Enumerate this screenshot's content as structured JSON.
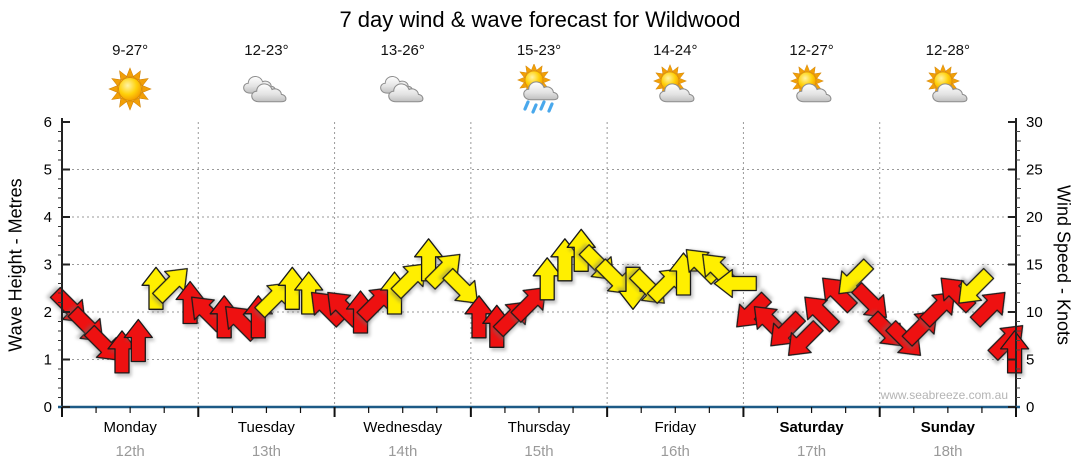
{
  "title": "7 day wind & wave forecast for Wildwood",
  "watermark": "www.seabreeze.com.au",
  "days": [
    {
      "name": "Monday",
      "date": "12th",
      "temp": "9-27°",
      "icon": "sunny",
      "bold": false
    },
    {
      "name": "Tuesday",
      "date": "13th",
      "temp": "12-23°",
      "icon": "cloudy",
      "bold": false
    },
    {
      "name": "Wednesday",
      "date": "14th",
      "temp": "13-26°",
      "icon": "cloudy",
      "bold": false
    },
    {
      "name": "Thursday",
      "date": "15th",
      "temp": "15-23°",
      "icon": "sun-showers",
      "bold": false
    },
    {
      "name": "Friday",
      "date": "16th",
      "temp": "14-24°",
      "icon": "partly-cloudy",
      "bold": false
    },
    {
      "name": "Saturday",
      "date": "17th",
      "temp": "12-27°",
      "icon": "partly-cloudy",
      "bold": true
    },
    {
      "name": "Sunday",
      "date": "18th",
      "temp": "12-28°",
      "icon": "partly-cloudy",
      "bold": true
    }
  ],
  "chart_data": {
    "type": "scatter",
    "subtype": "wind-direction-arrows-timeseries",
    "title": "7 day wind & wave forecast for Wildwood",
    "left_axis": {
      "label": "Wave Height - Metres",
      "min": 0,
      "max": 6,
      "tick_step": 1,
      "tick_labels": [
        "0",
        "1",
        "2",
        "3",
        "4",
        "5",
        "6"
      ]
    },
    "right_axis": {
      "label": "Wind Speed - Knots",
      "min": 0,
      "max": 30,
      "tick_step": 5,
      "tick_labels": [
        "0",
        "5",
        "10",
        "15",
        "20",
        "25",
        "30"
      ]
    },
    "x_categories": [
      "Monday",
      "Tuesday",
      "Wednesday",
      "Thursday",
      "Friday",
      "Saturday",
      "Sunday"
    ],
    "grid": true,
    "colors": {
      "red_arrow": "#ee1111",
      "yellow_arrow": "#ffef00",
      "outline": "#1a1a1a",
      "gridline": "#9a9a9a",
      "bottom_axis": "#1d5a86",
      "date_text": "#9a9a9a"
    },
    "units_note": "arrow height = wind speed in knots (right axis); axes aligned 1 m = 5 kn",
    "points": [
      {
        "t": 0.06,
        "knots": 10.5,
        "dir": 135,
        "color": "red"
      },
      {
        "t": 0.19,
        "knots": 8.5,
        "dir": 135,
        "color": "red"
      },
      {
        "t": 0.31,
        "knots": 6.5,
        "dir": 135,
        "color": "red"
      },
      {
        "t": 0.44,
        "knots": 5.8,
        "dir": 0,
        "color": "red"
      },
      {
        "t": 0.56,
        "knots": 7.0,
        "dir": 0,
        "color": "red"
      },
      {
        "t": 0.69,
        "knots": 12.5,
        "dir": 0,
        "color": "yellow"
      },
      {
        "t": 0.81,
        "knots": 13.0,
        "dir": 45,
        "color": "yellow"
      },
      {
        "t": 0.94,
        "knots": 11.0,
        "dir": 0,
        "color": "red"
      },
      {
        "t": 1.06,
        "knots": 10.0,
        "dir": 315,
        "color": "red"
      },
      {
        "t": 1.19,
        "knots": 9.5,
        "dir": 0,
        "color": "red"
      },
      {
        "t": 1.31,
        "knots": 9.0,
        "dir": 315,
        "color": "red"
      },
      {
        "t": 1.44,
        "knots": 9.5,
        "dir": 0,
        "color": "red"
      },
      {
        "t": 1.56,
        "knots": 11.5,
        "dir": 45,
        "color": "yellow"
      },
      {
        "t": 1.69,
        "knots": 12.5,
        "dir": 0,
        "color": "yellow"
      },
      {
        "t": 1.81,
        "knots": 12.0,
        "dir": 0,
        "color": "yellow"
      },
      {
        "t": 1.94,
        "knots": 10.5,
        "dir": 315,
        "color": "red"
      },
      {
        "t": 2.06,
        "knots": 10.5,
        "dir": 315,
        "color": "red"
      },
      {
        "t": 2.19,
        "knots": 10.0,
        "dir": 0,
        "color": "red"
      },
      {
        "t": 2.31,
        "knots": 11.0,
        "dir": 45,
        "color": "red"
      },
      {
        "t": 2.44,
        "knots": 12.0,
        "dir": 0,
        "color": "yellow"
      },
      {
        "t": 2.56,
        "knots": 13.5,
        "dir": 45,
        "color": "yellow"
      },
      {
        "t": 2.69,
        "knots": 15.5,
        "dir": 0,
        "color": "yellow"
      },
      {
        "t": 2.81,
        "knots": 14.5,
        "dir": 45,
        "color": "yellow"
      },
      {
        "t": 2.94,
        "knots": 12.5,
        "dir": 135,
        "color": "yellow"
      },
      {
        "t": 3.06,
        "knots": 9.5,
        "dir": 0,
        "color": "red"
      },
      {
        "t": 3.19,
        "knots": 8.5,
        "dir": 0,
        "color": "red"
      },
      {
        "t": 3.31,
        "knots": 9.5,
        "dir": 45,
        "color": "red"
      },
      {
        "t": 3.44,
        "knots": 11.0,
        "dir": 45,
        "color": "red"
      },
      {
        "t": 3.56,
        "knots": 13.5,
        "dir": 0,
        "color": "yellow"
      },
      {
        "t": 3.69,
        "knots": 15.5,
        "dir": 0,
        "color": "yellow"
      },
      {
        "t": 3.81,
        "knots": 16.5,
        "dir": 0,
        "color": "yellow"
      },
      {
        "t": 3.94,
        "knots": 15.0,
        "dir": 135,
        "color": "yellow"
      },
      {
        "t": 4.06,
        "knots": 13.5,
        "dir": 135,
        "color": "yellow"
      },
      {
        "t": 4.19,
        "knots": 12.5,
        "dir": 180,
        "color": "yellow"
      },
      {
        "t": 4.31,
        "knots": 12.5,
        "dir": 135,
        "color": "yellow"
      },
      {
        "t": 4.44,
        "knots": 13.0,
        "dir": 45,
        "color": "yellow"
      },
      {
        "t": 4.56,
        "knots": 14.0,
        "dir": 0,
        "color": "yellow"
      },
      {
        "t": 4.69,
        "knots": 15.0,
        "dir": 315,
        "color": "yellow"
      },
      {
        "t": 4.81,
        "knots": 14.5,
        "dir": 315,
        "color": "yellow"
      },
      {
        "t": 4.94,
        "knots": 13.0,
        "dir": 270,
        "color": "yellow"
      },
      {
        "t": 5.06,
        "knots": 10.0,
        "dir": 225,
        "color": "red"
      },
      {
        "t": 5.19,
        "knots": 9.0,
        "dir": 315,
        "color": "red"
      },
      {
        "t": 5.31,
        "knots": 8.0,
        "dir": 225,
        "color": "red"
      },
      {
        "t": 5.44,
        "knots": 7.0,
        "dir": 225,
        "color": "red"
      },
      {
        "t": 5.56,
        "knots": 10.0,
        "dir": 315,
        "color": "red"
      },
      {
        "t": 5.69,
        "knots": 12.0,
        "dir": 315,
        "color": "red"
      },
      {
        "t": 5.81,
        "knots": 13.5,
        "dir": 225,
        "color": "yellow"
      },
      {
        "t": 5.94,
        "knots": 11.0,
        "dir": 135,
        "color": "red"
      },
      {
        "t": 6.06,
        "knots": 8.0,
        "dir": 135,
        "color": "red"
      },
      {
        "t": 6.19,
        "knots": 7.0,
        "dir": 135,
        "color": "red"
      },
      {
        "t": 6.31,
        "knots": 8.5,
        "dir": 45,
        "color": "red"
      },
      {
        "t": 6.44,
        "knots": 10.5,
        "dir": 45,
        "color": "red"
      },
      {
        "t": 6.56,
        "knots": 12.0,
        "dir": 315,
        "color": "red"
      },
      {
        "t": 6.69,
        "knots": 12.5,
        "dir": 225,
        "color": "yellow"
      },
      {
        "t": 6.81,
        "knots": 10.5,
        "dir": 45,
        "color": "red"
      },
      {
        "t": 6.94,
        "knots": 7.0,
        "dir": 45,
        "color": "red"
      },
      {
        "t": 6.99,
        "knots": 5.8,
        "dir": 0,
        "color": "red"
      }
    ]
  }
}
